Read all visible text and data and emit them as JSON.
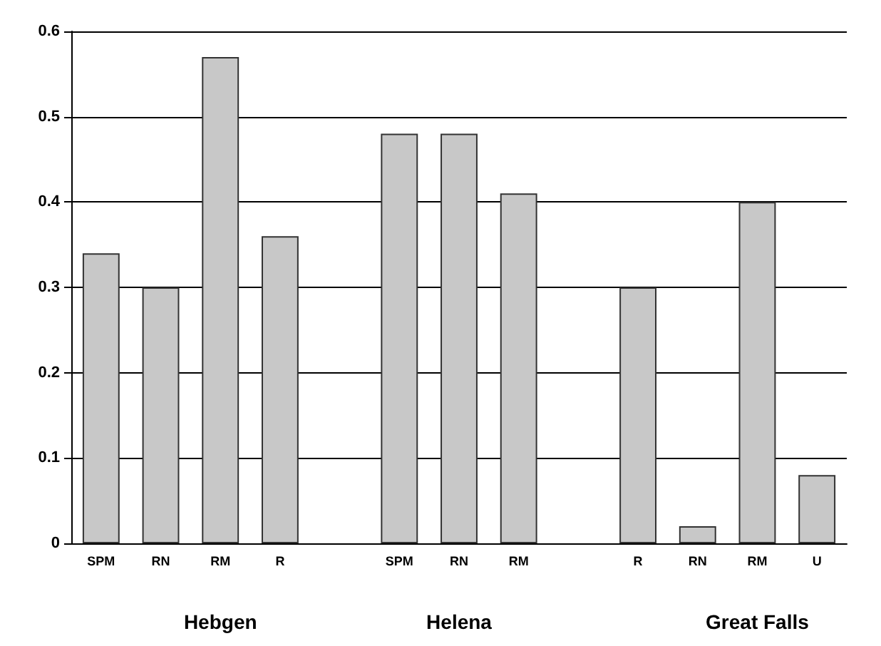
{
  "chart_data": {
    "type": "bar",
    "categories": [
      "SPM",
      "RN",
      "RM",
      "R",
      null,
      "SPM",
      "RN",
      "RM",
      null,
      "R",
      "RN",
      "RM",
      "U"
    ],
    "values": [
      0.34,
      0.3,
      0.57,
      0.36,
      null,
      0.48,
      0.48,
      0.41,
      null,
      0.3,
      0.02,
      0.4,
      0.08
    ],
    "color": "#c8c8c8",
    "ylim": [
      0,
      0.6
    ],
    "yticks": [
      0,
      0.1,
      0.2,
      0.3,
      0.4,
      0.5,
      0.6
    ],
    "grid": "y",
    "annotations": [
      "Hebgen",
      "Helena",
      "Great Falls"
    ]
  }
}
